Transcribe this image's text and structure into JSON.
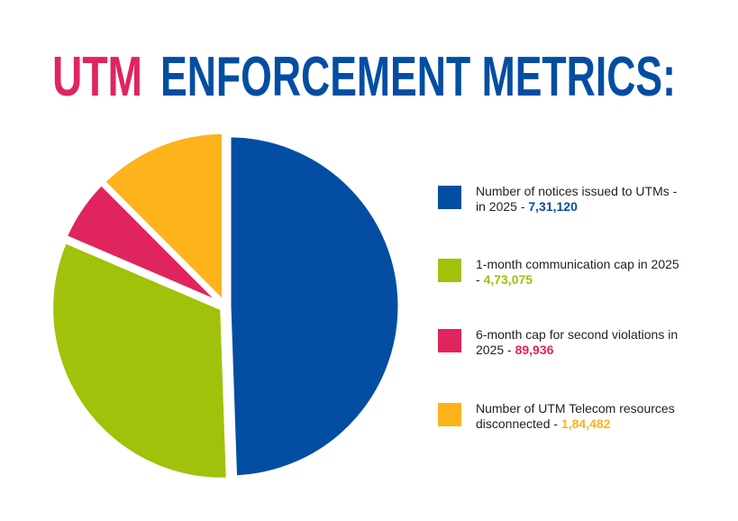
{
  "chart_data": {
    "type": "pie",
    "title": {
      "highlight": "UTM",
      "text": "ENFORCEMENT METRICS:"
    },
    "title_colors": {
      "highlight": "#e0245e",
      "text": "#034ea2"
    },
    "series": [
      {
        "name": "Number of notices issued to UTMs - in 2025 -",
        "color": "#034ea2",
        "values": [
          731120
        ],
        "value_labels": [
          "7,31,120"
        ]
      },
      {
        "name": "1-month communication cap  in 2025 -",
        "color": "#a0c20a",
        "values": [
          473075
        ],
        "value_labels": [
          "4,73,075"
        ]
      },
      {
        "name": "6-month cap for second violations in 2025 -",
        "color": "#e0245e",
        "values": [
          89936
        ],
        "value_labels": [
          "89,936"
        ]
      },
      {
        "name": "Number of UTM Telecom resources disconnected -",
        "color": "#fdb31c",
        "values": [
          184482
        ],
        "value_labels": [
          "1,84,482"
        ]
      }
    ]
  }
}
